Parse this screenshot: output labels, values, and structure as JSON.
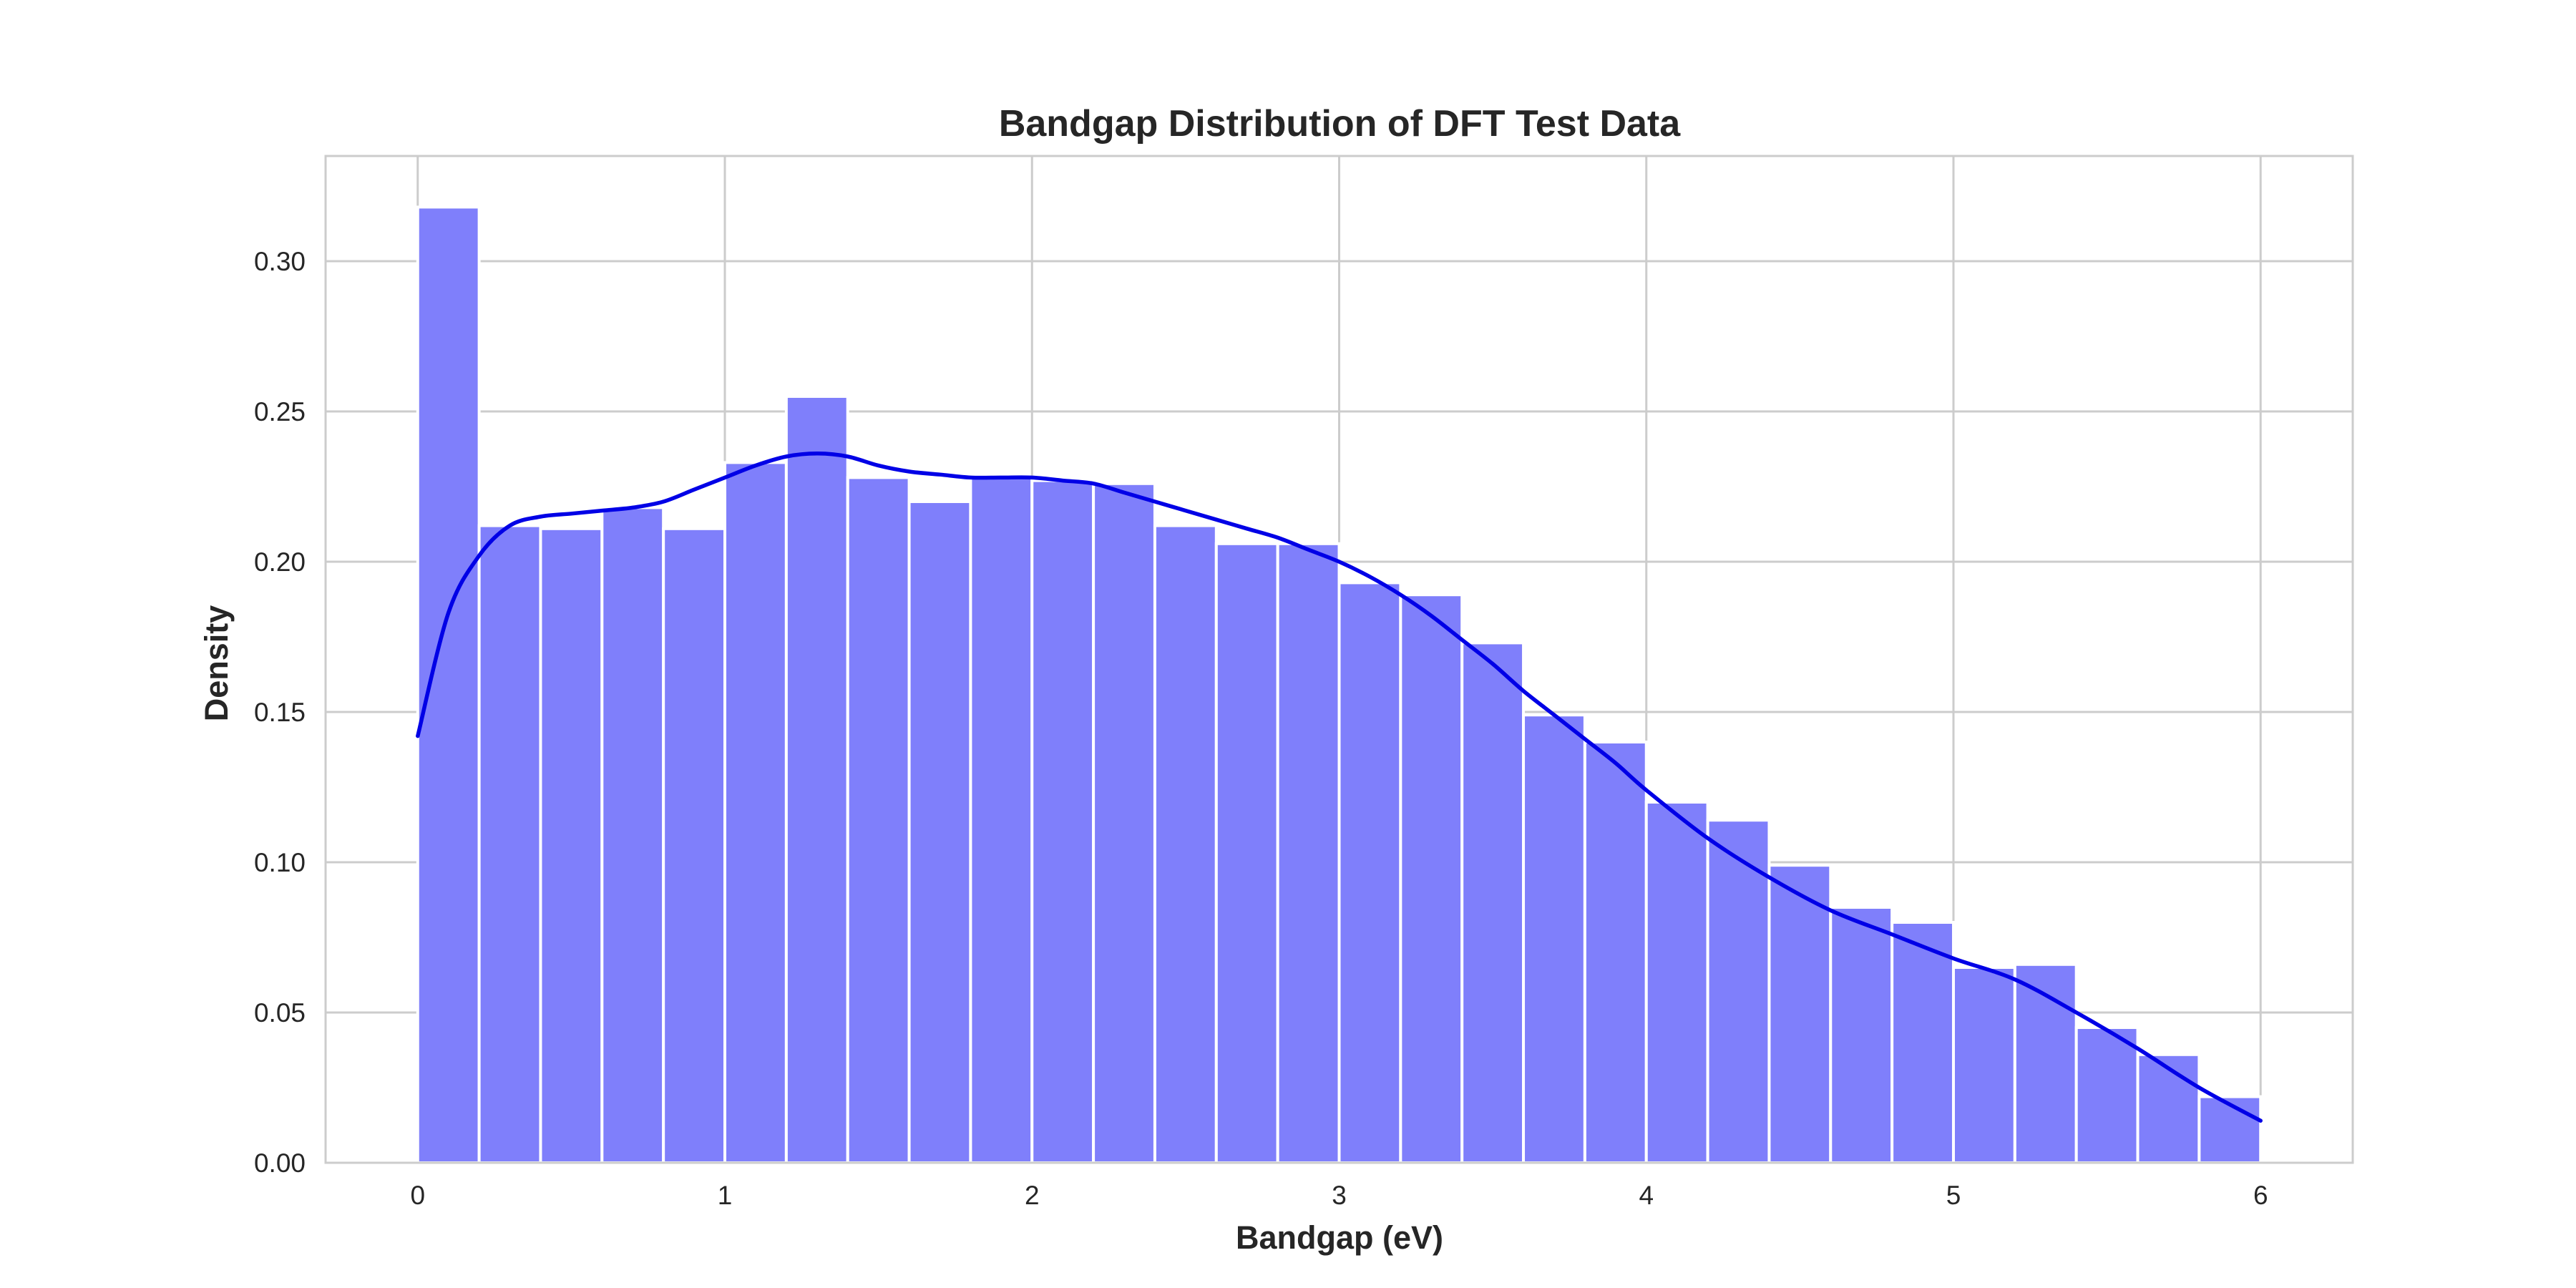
{
  "chart_data": {
    "type": "bar",
    "title": "Bandgap Distribution of DFT Test Data",
    "xlabel": "Bandgap (eV)",
    "ylabel": "Density",
    "xlim": [
      -0.3,
      6.3
    ],
    "ylim": [
      0,
      0.335
    ],
    "x_ticks": [
      0,
      1,
      2,
      3,
      4,
      5,
      6
    ],
    "x_tick_labels": [
      "0",
      "1",
      "2",
      "3",
      "4",
      "5",
      "6"
    ],
    "y_ticks": [
      0,
      0.05,
      0.1,
      0.15,
      0.2,
      0.25,
      0.3
    ],
    "y_tick_labels": [
      "0.00",
      "0.05",
      "0.10",
      "0.15",
      "0.20",
      "0.25",
      "0.30"
    ],
    "grid": true,
    "bin_edges": [
      0,
      0.2,
      0.4,
      0.6,
      0.8,
      1.0,
      1.2,
      1.4,
      1.6,
      1.8,
      2.0,
      2.2,
      2.4,
      2.6,
      2.8,
      3.0,
      3.2,
      3.4,
      3.6,
      3.8,
      4.0,
      4.2,
      4.4,
      4.6,
      4.8,
      5.0,
      5.2,
      5.4,
      5.6,
      5.8,
      6.0
    ],
    "values": [
      0.318,
      0.212,
      0.211,
      0.218,
      0.211,
      0.233,
      0.255,
      0.228,
      0.22,
      0.228,
      0.227,
      0.226,
      0.212,
      0.206,
      0.206,
      0.193,
      0.189,
      0.173,
      0.149,
      0.14,
      0.12,
      0.114,
      0.099,
      0.085,
      0.08,
      0.065,
      0.066,
      0.045,
      0.036,
      0.022
    ],
    "kde": {
      "x": [
        0,
        0.1,
        0.2,
        0.3,
        0.4,
        0.5,
        0.6,
        0.7,
        0.8,
        0.9,
        1.0,
        1.1,
        1.2,
        1.3,
        1.4,
        1.5,
        1.6,
        1.7,
        1.8,
        1.9,
        2.0,
        2.1,
        2.2,
        2.3,
        2.4,
        2.5,
        2.6,
        2.7,
        2.8,
        2.9,
        3.0,
        3.1,
        3.2,
        3.3,
        3.4,
        3.5,
        3.6,
        3.7,
        3.8,
        3.9,
        4.0,
        4.2,
        4.4,
        4.6,
        4.8,
        5.0,
        5.2,
        5.4,
        5.6,
        5.8,
        6.0
      ],
      "y": [
        0.142,
        0.183,
        0.202,
        0.212,
        0.215,
        0.216,
        0.217,
        0.218,
        0.22,
        0.224,
        0.228,
        0.232,
        0.235,
        0.236,
        0.235,
        0.232,
        0.23,
        0.229,
        0.228,
        0.228,
        0.228,
        0.227,
        0.226,
        0.223,
        0.22,
        0.217,
        0.214,
        0.211,
        0.208,
        0.204,
        0.2,
        0.195,
        0.189,
        0.182,
        0.174,
        0.166,
        0.157,
        0.149,
        0.141,
        0.133,
        0.124,
        0.108,
        0.095,
        0.084,
        0.076,
        0.068,
        0.061,
        0.05,
        0.038,
        0.025,
        0.014
      ]
    },
    "colors": {
      "bar_fill": "#7f7ffb",
      "kde_line": "#0000e6",
      "grid": "#cccccc",
      "text": "#262626"
    }
  }
}
